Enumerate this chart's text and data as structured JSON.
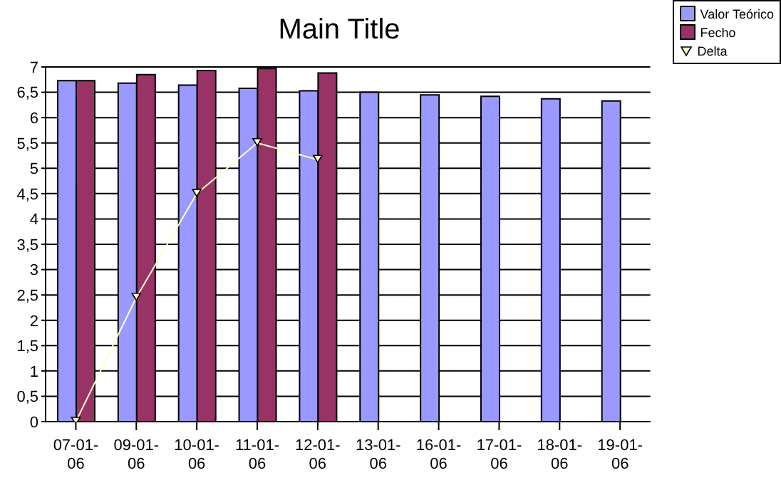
{
  "chart_data": {
    "type": "bar",
    "title": "Main Title",
    "categories": [
      "07-01-06",
      "09-01-06",
      "10-01-06",
      "11-01-06",
      "12-01-06",
      "13-01-06",
      "16-01-06",
      "17-01-06",
      "18-01-06",
      "19-01-06"
    ],
    "series": [
      {
        "name": "Valor Teórico",
        "color": "#9999ff",
        "values": [
          6.73,
          6.68,
          6.64,
          6.58,
          6.53,
          6.5,
          6.45,
          6.42,
          6.37,
          6.33
        ]
      },
      {
        "name": "Fecho",
        "color": "#993366",
        "values": [
          6.73,
          6.85,
          6.93,
          6.97,
          6.88,
          null,
          null,
          null,
          null,
          null
        ]
      },
      {
        "name": "Delta",
        "type": "line",
        "color": "#ffffcc",
        "marker": "triangle",
        "values": [
          0,
          2.45,
          4.5,
          5.5,
          5.17,
          null,
          null,
          null,
          null,
          null
        ]
      }
    ],
    "ylim": [
      0,
      7
    ],
    "yticks": [
      0,
      {
        "value": 0.5,
        "label": "0,5"
      },
      1,
      {
        "value": 1.5,
        "label": "1,5"
      },
      2,
      {
        "value": 2.5,
        "label": "2,5"
      },
      3,
      {
        "value": 3.5,
        "label": "3,5"
      },
      4,
      {
        "value": 4.5,
        "label": "4,5"
      },
      5,
      {
        "value": 5.5,
        "label": "5,5"
      },
      6,
      {
        "value": 6.5,
        "label": "6,5"
      },
      7
    ],
    "grid": "y",
    "legend": "top right"
  }
}
